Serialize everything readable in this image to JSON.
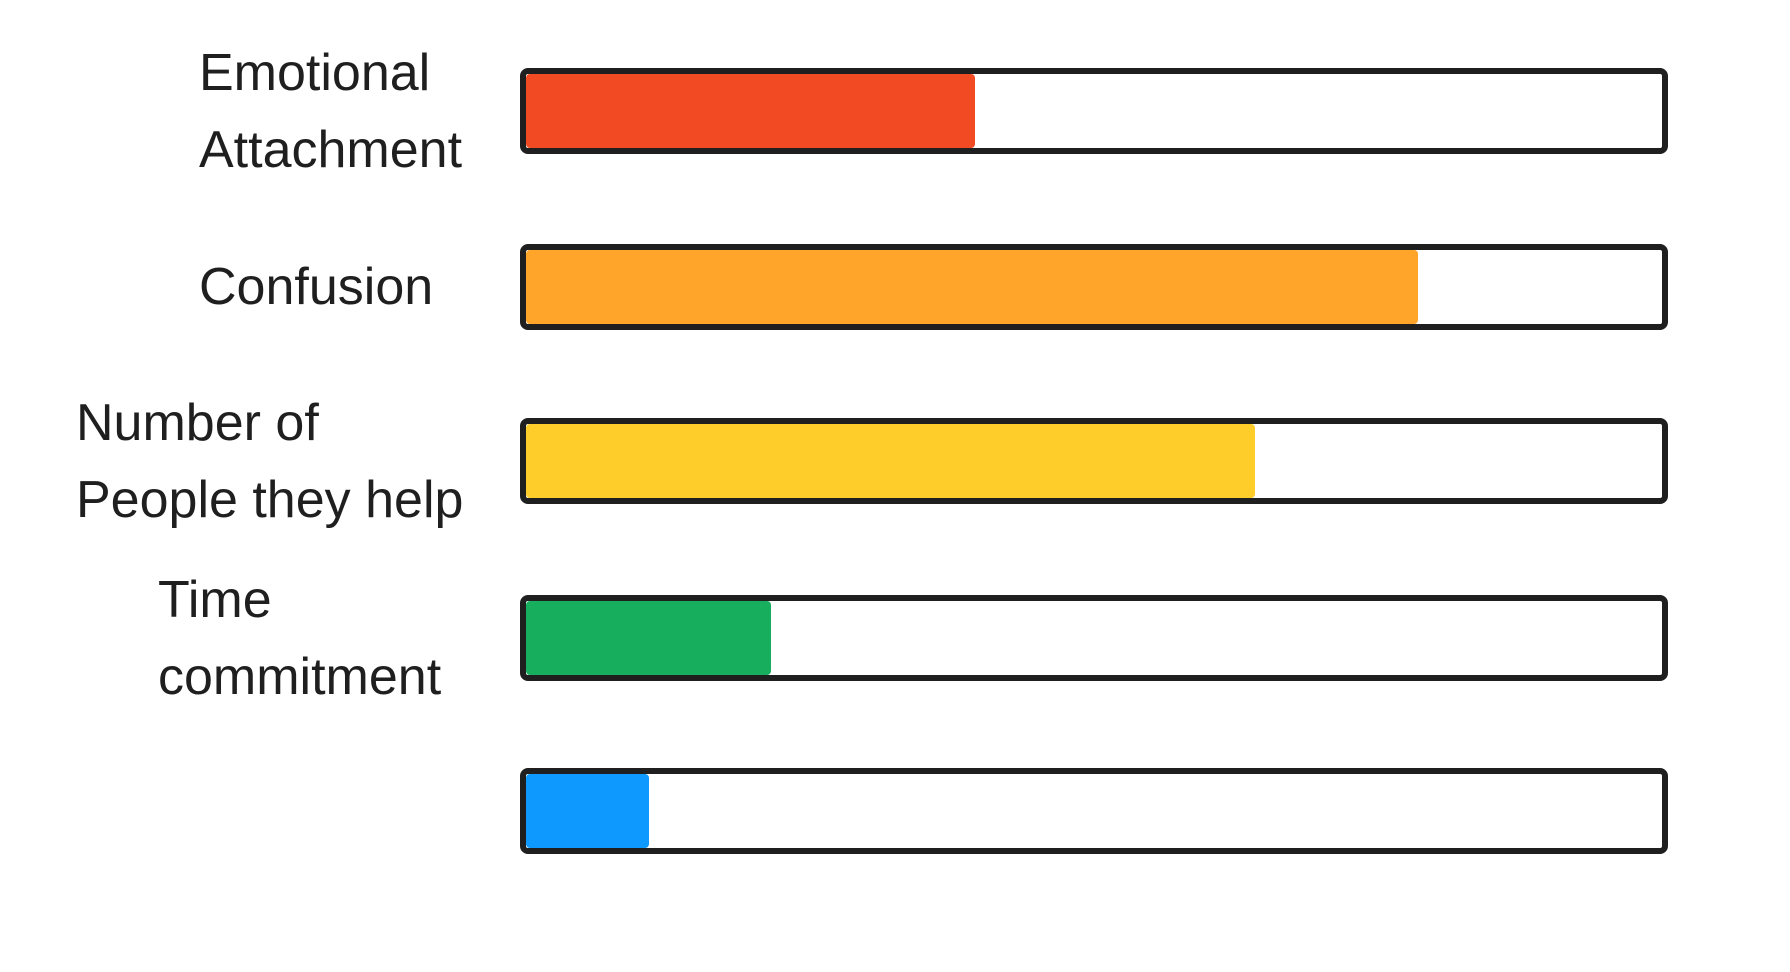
{
  "chart_data": {
    "type": "bar",
    "orientation": "horizontal",
    "xlim": [
      0,
      100
    ],
    "title": "",
    "xlabel": "",
    "ylabel": "",
    "grid": false,
    "legend": "none",
    "rows": [
      {
        "label_lines": [
          "Emotional",
          "Attachment"
        ],
        "value": 39.5,
        "color": "#f24a22"
      },
      {
        "label_lines": [
          "Confusion"
        ],
        "value": 78.5,
        "color": "#ffa52a"
      },
      {
        "label_lines": [
          "Number of",
          "People they help"
        ],
        "value": 64.2,
        "color": "#ffcd29"
      },
      {
        "label_lines": [
          "Time",
          "commitment"
        ],
        "value": 21.6,
        "color": "#17ae5e"
      },
      {
        "label_lines": [],
        "value": 10.8,
        "color": "#0e99ff"
      }
    ]
  }
}
